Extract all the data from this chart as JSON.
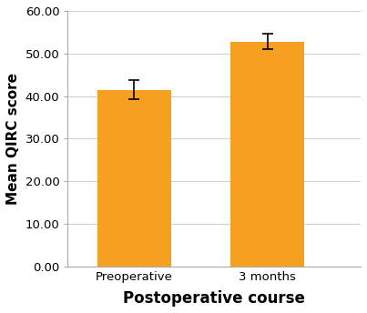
{
  "categories": [
    "Preoperative",
    "3 months"
  ],
  "values": [
    41.5,
    52.8
  ],
  "errors": [
    2.3,
    1.8
  ],
  "bar_color": "#F5A020",
  "bar_width": 0.55,
  "ylabel": "Mean QIRC score",
  "xlabel": "Postoperative course",
  "ylim": [
    0,
    60
  ],
  "yticks": [
    0.0,
    10.0,
    20.0,
    30.0,
    40.0,
    50.0,
    60.0
  ],
  "ytick_labels": [
    "0.00",
    "10.00",
    "20.00",
    "30.00",
    "40.00",
    "50.00",
    "60.00"
  ],
  "background_color": "#ffffff",
  "grid_color": "#d0d0d0",
  "xlabel_fontsize": 12,
  "ylabel_fontsize": 11,
  "tick_fontsize": 9.5
}
